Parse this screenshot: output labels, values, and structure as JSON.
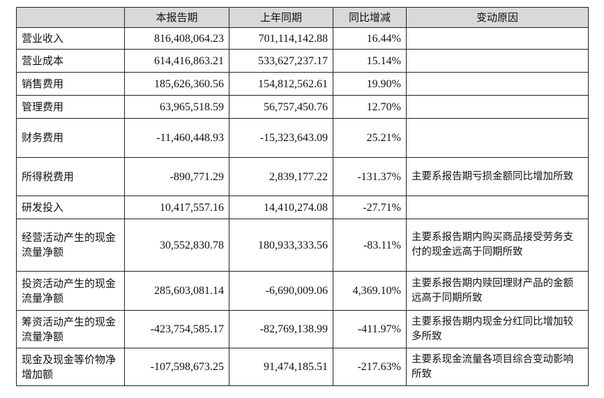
{
  "headers": [
    "",
    "本报告期",
    "上年同期",
    "同比增减",
    "变动原因"
  ],
  "rows": [
    {
      "name": "营业收入",
      "current": "816,408,064.23",
      "previous": "701,114,142.88",
      "change": "16.44%",
      "reason": ""
    },
    {
      "name": "营业成本",
      "current": "614,416,863.21",
      "previous": "533,627,237.17",
      "change": "15.14%",
      "reason": ""
    },
    {
      "name": "销售费用",
      "current": "185,626,360.56",
      "previous": "154,812,562.61",
      "change": "19.90%",
      "reason": ""
    },
    {
      "name": "管理费用",
      "current": "63,965,518.59",
      "previous": "56,757,450.76",
      "change": "12.70%",
      "reason": ""
    },
    {
      "name": "财务费用",
      "current": "-11,460,448.93",
      "previous": "-15,323,643.09",
      "change": "25.21%",
      "reason": ""
    },
    {
      "name": "所得税费用",
      "current": "-890,771.29",
      "previous": "2,839,177.22",
      "change": "-131.37%",
      "reason": "主要系报告期亏损金额同比增加所致"
    },
    {
      "name": "研发投入",
      "current": "10,417,557.16",
      "previous": "14,410,274.08",
      "change": "-27.71%",
      "reason": ""
    },
    {
      "name": "经营活动产生的现金流量净额",
      "current": "30,552,830.78",
      "previous": "180,933,333.56",
      "change": "-83.11%",
      "reason": "主要系报告期内购买商品接受劳务支付的现金远高于同期所致"
    },
    {
      "name": "投资活动产生的现金流量净额",
      "current": "285,603,081.14",
      "previous": "-6,690,009.06",
      "change": "4,369.10%",
      "reason": "主要系报告期内赎回理财产品的金额远高于同期所致"
    },
    {
      "name": "筹资活动产生的现金流量净额",
      "current": "-423,754,585.17",
      "previous": "-82,769,138.99",
      "change": "-411.97%",
      "reason": "主要系报告期内现金分红同比增加较多所致"
    },
    {
      "name": "现金及现金等价物净增加额",
      "current": "-107,598,673.25",
      "previous": "91,474,185.51",
      "change": "-217.63%",
      "reason": "主要系现金流量各项目综合变动影响所致"
    }
  ]
}
